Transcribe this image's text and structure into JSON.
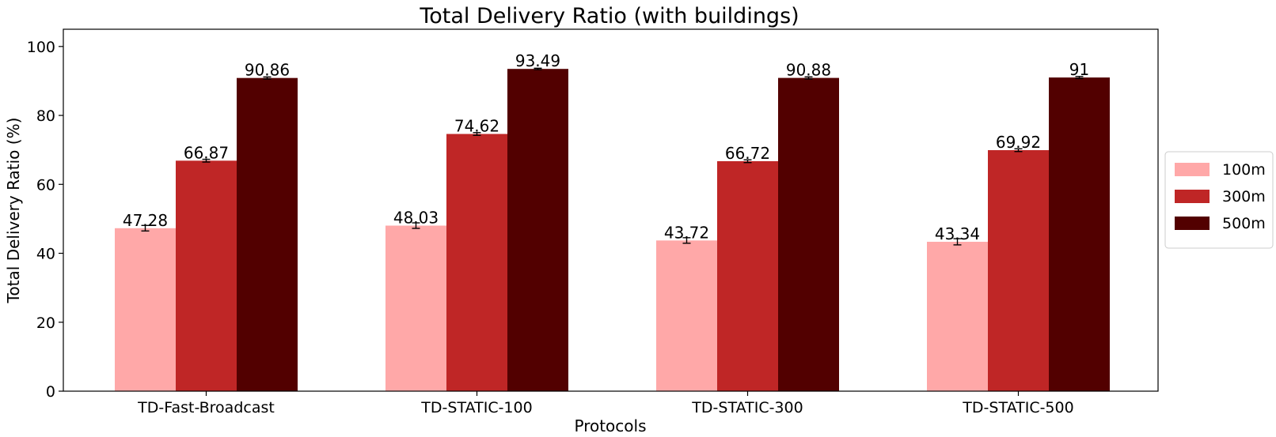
{
  "chart_data": {
    "type": "bar",
    "title": "Total Delivery Ratio (with buildings)",
    "xlabel": "Protocols",
    "ylabel": "Total Delivery Ratio (%)",
    "categories": [
      "TD-Fast-Broadcast",
      "TD-STATIC-100",
      "TD-STATIC-300",
      "TD-STATIC-500"
    ],
    "series": [
      {
        "name": "100m",
        "color": "#ffa8a8",
        "values": [
          47.28,
          48.03,
          43.72,
          43.34
        ],
        "labels": [
          "47.28",
          "48.03",
          "43.72",
          "43.34"
        ],
        "errors": [
          0.8,
          0.8,
          0.8,
          0.9
        ]
      },
      {
        "name": "300m",
        "color": "#bf2626",
        "values": [
          66.87,
          74.62,
          66.72,
          69.92
        ],
        "labels": [
          "66.87",
          "74.62",
          "66.72",
          "69.92"
        ],
        "errors": [
          0.4,
          0.4,
          0.4,
          0.4
        ]
      },
      {
        "name": "500m",
        "color": "#520000",
        "values": [
          90.86,
          93.49,
          90.88,
          91
        ],
        "labels": [
          "90.86",
          "93.49",
          "90.88",
          "91"
        ],
        "errors": [
          0.3,
          0.2,
          0.3,
          0.3
        ]
      }
    ],
    "ylim": [
      0,
      105
    ],
    "yticks": [
      0,
      20,
      40,
      60,
      80,
      100
    ],
    "grid": false,
    "legend_position": "right",
    "error_bars": true
  }
}
